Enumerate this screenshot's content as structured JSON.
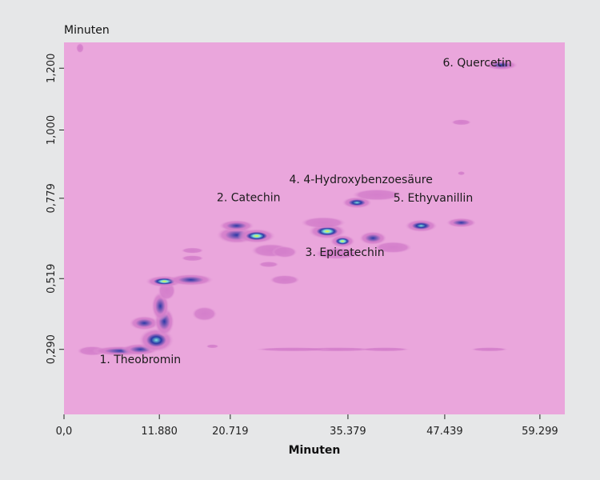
{
  "chart_data": {
    "type": "heatmap",
    "xlabel": "Minuten",
    "ylabel": "Minuten",
    "xlim": [
      0,
      62.4
    ],
    "ylim": [
      0.0795,
      1.2835
    ],
    "x_ticks": [
      0.0,
      11.88,
      20.719,
      35.379,
      47.439,
      59.299
    ],
    "x_tick_labels": [
      "0,0",
      "11.880",
      "20.719",
      "35.379",
      "47.439",
      "59.299"
    ],
    "y_ticks": [
      0.29,
      0.519,
      0.779,
      1.0,
      1.2
    ],
    "y_tick_labels": [
      "0,290",
      "0,519",
      "0,779",
      "1,000",
      "1,200"
    ],
    "colors": {
      "background": "#e6e7e8",
      "plot_background": "#eaa6dc",
      "low": "#d47fcb",
      "mid": "#2b3aa6",
      "cyan": "#7fe3e0",
      "yellow": "#f2f22a",
      "high": "#c0102a"
    },
    "annotations": [
      {
        "label": "1. Theobromin",
        "x": 9.5,
        "y": 0.245
      },
      {
        "label": "2. Catechin",
        "x": 23.0,
        "y": 0.77
      },
      {
        "label": "3. Epicatechin",
        "x": 35.0,
        "y": 0.592
      },
      {
        "label": "4. 4-Hydroxybenzoesäure",
        "x": 37.0,
        "y": 0.828
      },
      {
        "label": "5. Ethyvanillin",
        "x": 46.0,
        "y": 0.768
      },
      {
        "label": "6. Quercetin",
        "x": 51.5,
        "y": 1.206
      }
    ],
    "peaks": [
      {
        "x": 3.5,
        "y": 0.285,
        "sx": 1.2,
        "sy": 0.01,
        "i": 0.3
      },
      {
        "x": 7.0,
        "y": 0.285,
        "sx": 2.2,
        "sy": 0.01,
        "i": 0.55
      },
      {
        "x": 9.5,
        "y": 0.29,
        "sx": 1.5,
        "sy": 0.012,
        "i": 0.45
      },
      {
        "x": 11.5,
        "y": 0.32,
        "sx": 1.4,
        "sy": 0.025,
        "i": 0.65
      },
      {
        "x": 10.0,
        "y": 0.375,
        "sx": 1.2,
        "sy": 0.015,
        "i": 0.5
      },
      {
        "x": 12.5,
        "y": 0.38,
        "sx": 0.8,
        "sy": 0.03,
        "i": 0.5
      },
      {
        "x": 12.0,
        "y": 0.43,
        "sx": 0.7,
        "sy": 0.03,
        "i": 0.45
      },
      {
        "x": 12.8,
        "y": 0.48,
        "sx": 0.7,
        "sy": 0.02,
        "i": 0.4
      },
      {
        "x": 12.5,
        "y": 0.51,
        "sx": 1.5,
        "sy": 0.012,
        "i": 0.82
      },
      {
        "x": 15.8,
        "y": 0.515,
        "sx": 1.8,
        "sy": 0.012,
        "i": 0.6
      },
      {
        "x": 17.5,
        "y": 0.405,
        "sx": 1.0,
        "sy": 0.015,
        "i": 0.35
      },
      {
        "x": 16.0,
        "y": 0.61,
        "sx": 0.9,
        "sy": 0.006,
        "i": 0.2
      },
      {
        "x": 16.0,
        "y": 0.585,
        "sx": 0.9,
        "sy": 0.006,
        "i": 0.2
      },
      {
        "x": 21.5,
        "y": 0.66,
        "sx": 1.6,
        "sy": 0.018,
        "i": 0.6
      },
      {
        "x": 24.0,
        "y": 0.657,
        "sx": 1.5,
        "sy": 0.015,
        "i": 0.8
      },
      {
        "x": 21.5,
        "y": 0.69,
        "sx": 1.4,
        "sy": 0.012,
        "i": 0.5
      },
      {
        "x": 25.8,
        "y": 0.61,
        "sx": 1.6,
        "sy": 0.014,
        "i": 0.35
      },
      {
        "x": 27.5,
        "y": 0.605,
        "sx": 1.0,
        "sy": 0.012,
        "i": 0.3
      },
      {
        "x": 25.5,
        "y": 0.565,
        "sx": 0.8,
        "sy": 0.006,
        "i": 0.2
      },
      {
        "x": 27.5,
        "y": 0.515,
        "sx": 1.2,
        "sy": 0.01,
        "i": 0.25
      },
      {
        "x": 32.8,
        "y": 0.672,
        "sx": 1.5,
        "sy": 0.016,
        "i": 0.98
      },
      {
        "x": 34.7,
        "y": 0.64,
        "sx": 1.0,
        "sy": 0.013,
        "i": 0.8
      },
      {
        "x": 32.3,
        "y": 0.7,
        "sx": 1.8,
        "sy": 0.012,
        "i": 0.35
      },
      {
        "x": 34.0,
        "y": 0.6,
        "sx": 1.8,
        "sy": 0.012,
        "i": 0.3
      },
      {
        "x": 36.5,
        "y": 0.765,
        "sx": 1.2,
        "sy": 0.012,
        "i": 0.68
      },
      {
        "x": 39.0,
        "y": 0.79,
        "sx": 2.0,
        "sy": 0.012,
        "i": 0.3
      },
      {
        "x": 38.5,
        "y": 0.65,
        "sx": 1.1,
        "sy": 0.014,
        "i": 0.6
      },
      {
        "x": 41.0,
        "y": 0.62,
        "sx": 1.5,
        "sy": 0.012,
        "i": 0.3
      },
      {
        "x": 44.5,
        "y": 0.69,
        "sx": 1.3,
        "sy": 0.013,
        "i": 0.72
      },
      {
        "x": 49.5,
        "y": 0.7,
        "sx": 1.2,
        "sy": 0.01,
        "i": 0.45
      },
      {
        "x": 49.5,
        "y": 1.025,
        "sx": 0.8,
        "sy": 0.006,
        "i": 0.4
      },
      {
        "x": 54.5,
        "y": 1.21,
        "sx": 1.3,
        "sy": 0.01,
        "i": 0.62
      },
      {
        "x": 49.5,
        "y": 0.86,
        "sx": 0.3,
        "sy": 0.003,
        "i": 0.15
      },
      {
        "x": 34.0,
        "y": 0.29,
        "sx": 3.0,
        "sy": 0.004,
        "i": 0.2
      },
      {
        "x": 28.5,
        "y": 0.29,
        "sx": 3.0,
        "sy": 0.004,
        "i": 0.2
      },
      {
        "x": 40.0,
        "y": 0.29,
        "sx": 2.0,
        "sy": 0.004,
        "i": 0.15
      },
      {
        "x": 53.0,
        "y": 0.29,
        "sx": 1.5,
        "sy": 0.004,
        "i": 0.15
      },
      {
        "x": 18.5,
        "y": 0.3,
        "sx": 0.5,
        "sy": 0.004,
        "i": 0.15
      },
      {
        "x": 2.0,
        "y": 1.265,
        "sx": 0.3,
        "sy": 0.01,
        "i": 0.15
      }
    ]
  }
}
